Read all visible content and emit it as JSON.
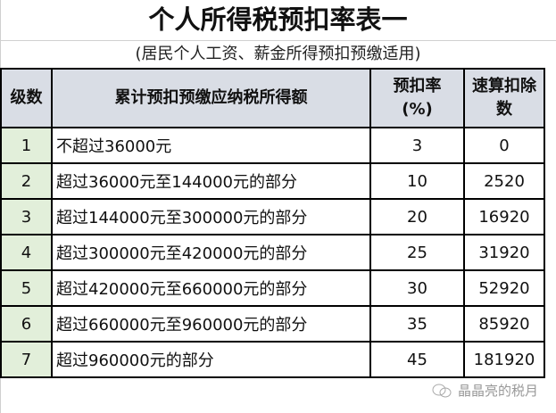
{
  "title": "个人所得税预扣率表一",
  "subtitle": "(居民个人工资、薪金所得预扣预缴适用)",
  "headers": {
    "level": "级数",
    "range": "累计预扣预缴应纳税所得额",
    "rate": "预扣率\n(%)",
    "rate_l1": "预扣率",
    "rate_l2": "(%)",
    "deduct_l1": "速算扣除",
    "deduct_l2": "数"
  },
  "rows": [
    {
      "level": "1",
      "range": "不超过36000元",
      "rate": "3",
      "deduction": "0"
    },
    {
      "level": "2",
      "range": "超过36000元至144000元的部分",
      "rate": "10",
      "deduction": "2520"
    },
    {
      "level": "3",
      "range": "超过144000元至300000元的部分",
      "rate": "20",
      "deduction": "16920"
    },
    {
      "level": "4",
      "range": "超过300000元至420000元的部分",
      "rate": "25",
      "deduction": "31920"
    },
    {
      "level": "5",
      "range": "超过420000元至660000元的部分",
      "rate": "30",
      "deduction": "52920"
    },
    {
      "level": "6",
      "range": "超过660000元至960000元的部分",
      "rate": "35",
      "deduction": "85920"
    },
    {
      "level": "7",
      "range": "超过960000元的部分",
      "rate": "45",
      "deduction": "181920"
    }
  ],
  "watermark": "晶晶亮的税月",
  "colors": {
    "header_bg": "#d9dde5",
    "level_bg": "#e2efda"
  }
}
